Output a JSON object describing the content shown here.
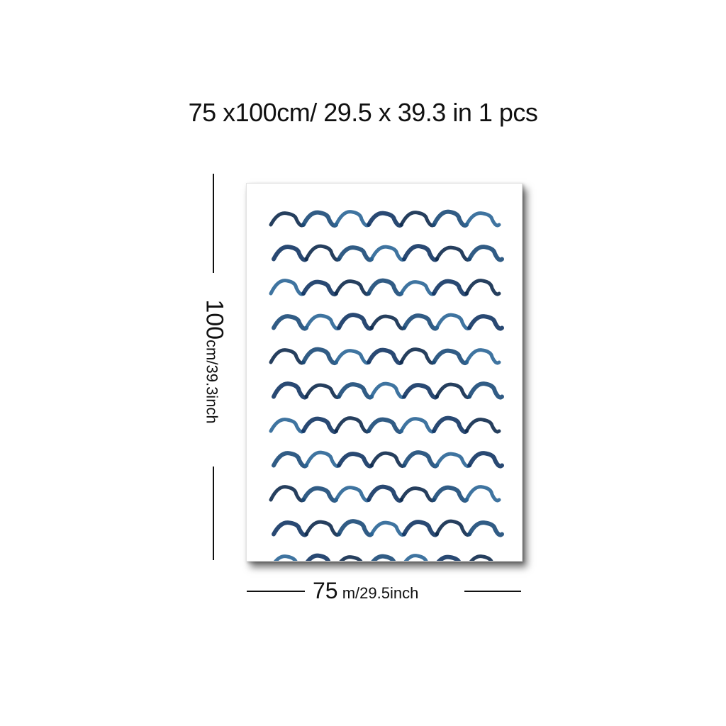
{
  "header": {
    "size_text": "75 x100cm/ 29.5 x 39.3 in 1 pcs"
  },
  "height_label": {
    "value": "100",
    "unit": "cm/39.3inch"
  },
  "width_label": {
    "value": "75",
    "unit": " m/29.5inch"
  },
  "poster": {
    "pattern": "watercolor-waves",
    "wave_rows": 11,
    "colors": [
      "#0e2a4d",
      "#1b4a78",
      "#2a6596",
      "#123564"
    ]
  }
}
